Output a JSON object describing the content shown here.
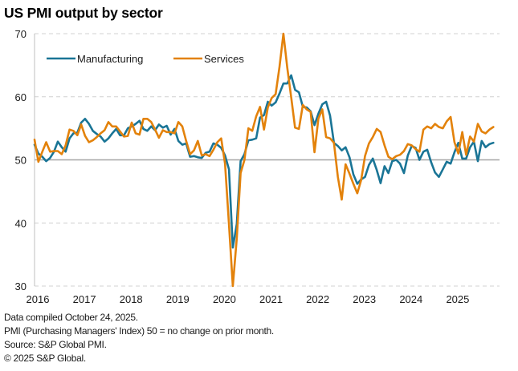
{
  "chart_data": {
    "type": "line",
    "title": "US PMI output by sector",
    "xlabel": "",
    "ylabel": "",
    "ylim": [
      30,
      70
    ],
    "yticks": [
      30,
      40,
      50,
      60,
      70
    ],
    "xticks": [
      "2016",
      "2017",
      "2018",
      "2019",
      "2020",
      "2021",
      "2022",
      "2023",
      "2024",
      "2025"
    ],
    "x_start": "2016-01",
    "x_end": "2025-10",
    "frequency": "monthly",
    "reference_line": 50,
    "grid": "horizontal dashed",
    "legend_position": "top-left",
    "series": [
      {
        "name": "Manufacturing",
        "color": "#1a7596",
        "values": [
          52.4,
          51.0,
          50.5,
          49.8,
          50.3,
          51.3,
          52.9,
          52.0,
          51.3,
          53.4,
          54.2,
          54.3,
          55.9,
          56.5,
          55.7,
          54.6,
          54.1,
          53.7,
          52.9,
          53.4,
          54.2,
          54.9,
          53.9,
          53.9,
          55.0,
          55.3,
          55.7,
          56.2,
          54.9,
          54.6,
          55.3,
          54.7,
          55.6,
          55.1,
          55.4,
          54.0,
          54.9,
          53.0,
          52.4,
          52.6,
          50.5,
          50.6,
          50.4,
          50.3,
          51.1,
          51.3,
          52.6,
          52.4,
          51.9,
          50.7,
          48.5,
          36.1,
          39.8,
          49.8,
          50.9,
          53.1,
          53.2,
          53.4,
          56.7,
          57.1,
          59.2,
          58.6,
          59.1,
          60.5,
          62.1,
          62.1,
          63.4,
          61.1,
          60.7,
          58.4,
          58.3,
          57.7,
          55.5,
          57.3,
          58.8,
          59.2,
          57.0,
          52.7,
          52.2,
          51.5,
          52.0,
          50.4,
          47.7,
          46.2,
          46.9,
          47.3,
          49.2,
          50.2,
          48.4,
          46.3,
          49.0,
          47.9,
          49.8,
          50.0,
          49.4,
          47.9,
          50.7,
          52.2,
          51.9,
          50.0,
          51.3,
          51.6,
          49.6,
          48.0,
          47.3,
          48.5,
          49.7,
          49.4,
          51.2,
          52.7,
          50.2,
          50.2,
          52.0,
          52.9,
          49.8,
          53.0,
          52.0,
          52.5,
          52.7
        ]
      },
      {
        "name": "Services",
        "color": "#e3820b",
        "values": [
          53.2,
          49.7,
          51.3,
          52.8,
          51.3,
          51.4,
          51.4,
          50.9,
          52.3,
          54.8,
          54.6,
          53.9,
          55.6,
          53.8,
          52.8,
          53.1,
          53.6,
          54.2,
          54.7,
          56.0,
          55.3,
          55.3,
          54.5,
          53.7,
          53.8,
          55.9,
          54.2,
          54.0,
          56.5,
          56.5,
          56.0,
          54.8,
          53.5,
          54.7,
          54.4,
          54.4,
          54.2,
          56.0,
          55.3,
          53.0,
          50.9,
          51.5,
          53.0,
          50.7,
          50.9,
          50.6,
          51.6,
          52.8,
          53.4,
          49.4,
          39.8,
          26.7,
          37.5,
          47.9,
          50.0,
          55.0,
          54.6,
          56.9,
          58.4,
          54.8,
          58.3,
          59.8,
          60.4,
          64.7,
          70.4,
          64.6,
          59.9,
          55.1,
          54.9,
          58.7,
          58.0,
          57.6,
          51.2,
          56.5,
          58.0,
          53.6,
          53.4,
          52.7,
          47.3,
          43.7,
          49.3,
          47.8,
          46.2,
          44.7,
          46.8,
          50.6,
          52.6,
          53.6,
          54.9,
          54.4,
          52.3,
          50.5,
          50.1,
          50.6,
          50.8,
          51.4,
          52.5,
          52.3,
          51.7,
          51.3,
          54.8,
          55.3,
          55.0,
          55.7,
          55.2,
          55.0,
          56.1,
          56.8,
          52.8,
          51.0,
          54.4,
          50.8,
          53.7,
          52.9,
          55.7,
          54.5,
          54.2,
          54.8,
          55.2
        ]
      }
    ]
  },
  "footnotes": [
    "Data compiled October 24, 2025.",
    "PMI (Purchasing Managers' Index) 50 =  no change on prior month.",
    "Source: S&P Global PMI.",
    "© 2025 S&P Global."
  ]
}
